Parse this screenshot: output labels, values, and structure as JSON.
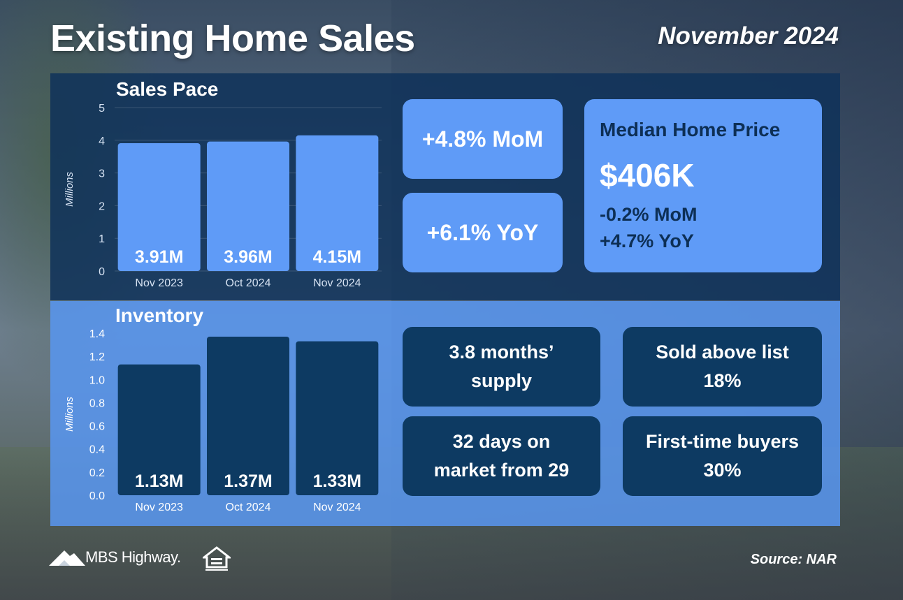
{
  "header": {
    "title": "Existing Home Sales",
    "date": "November 2024"
  },
  "sales_pace": {
    "title": "Sales Pace",
    "mom": "+4.8% MoM",
    "yoy": "+6.1% YoY"
  },
  "median_price": {
    "title": "Median Home Price",
    "value": "$406K",
    "mom": "-0.2% MoM",
    "yoy": "+4.7% YoY"
  },
  "inventory": {
    "title": "Inventory",
    "supply_line1": "3.8 months’",
    "supply_line2": "supply",
    "days_line1": "32 days on",
    "days_line2": "market from 29",
    "above_list_title": "Sold above list",
    "above_list_value": "18%",
    "first_time_title": "First-time buyers",
    "first_time_value": "30%"
  },
  "footer": {
    "brand": "MBS Highway.",
    "source": "Source: NAR"
  },
  "colors": {
    "dark_panel": "#0f325a",
    "light_panel": "#5896f0",
    "bar_light": "#5f9bf7",
    "bar_dark": "#0d3a62"
  },
  "icons": [
    "mbs-highway-logo-icon",
    "equal-housing-opportunity-icon"
  ],
  "chart_data": [
    {
      "type": "bar",
      "title": "Sales Pace",
      "ylabel": "Millions",
      "categories": [
        "Nov 2023",
        "Oct 2024",
        "Nov 2024"
      ],
      "values": [
        3.91,
        3.96,
        4.15
      ],
      "value_labels": [
        "3.91M",
        "3.96M",
        "4.15M"
      ],
      "ylim": [
        0,
        5
      ],
      "yticks": [
        "0",
        "1",
        "2",
        "3",
        "4",
        "5"
      ],
      "grid": true
    },
    {
      "type": "bar",
      "title": "Inventory",
      "ylabel": "Millions",
      "categories": [
        "Nov 2023",
        "Oct 2024",
        "Nov 2024"
      ],
      "values": [
        1.13,
        1.37,
        1.33
      ],
      "value_labels": [
        "1.13M",
        "1.37M",
        "1.33M"
      ],
      "ylim": [
        0,
        1.4
      ],
      "yticks": [
        "0.0",
        "0.2",
        "0.4",
        "0.6",
        "0.8",
        "1.0",
        "1.2",
        "1.4"
      ],
      "grid": false
    }
  ]
}
